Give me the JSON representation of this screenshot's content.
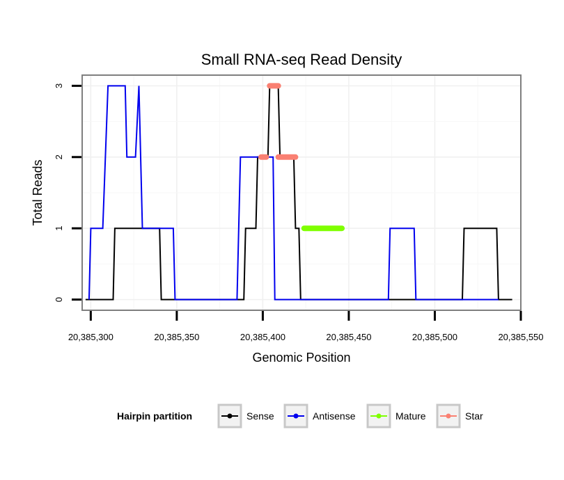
{
  "chart_data": {
    "type": "line",
    "title": "Small RNA-seq Read Density",
    "xlabel": "Genomic Position",
    "ylabel": "Total Reads",
    "xlim": [
      20385295,
      20385550
    ],
    "ylim": [
      -0.15,
      3.15
    ],
    "x_ticks": [
      20385300,
      20385350,
      20385400,
      20385450,
      20385500,
      20385550
    ],
    "x_tick_labels": [
      "20,385,300",
      "20,385,350",
      "20,385,400",
      "20,385,450",
      "20,385,500",
      "20,385,550"
    ],
    "y_ticks": [
      0,
      1,
      2,
      3
    ],
    "y_tick_labels": [
      "0",
      "1",
      "2",
      "3"
    ],
    "grid": true,
    "legend": {
      "title": "Hairpin partition",
      "position": "bottom",
      "entries": [
        {
          "name": "Sense",
          "color": "#000000"
        },
        {
          "name": "Antisense",
          "color": "#0000ee"
        },
        {
          "name": "Mature",
          "color": "#7fff00"
        },
        {
          "name": "Star",
          "color": "#fa8072"
        }
      ]
    },
    "series": [
      {
        "name": "Sense",
        "color": "#000000",
        "style": "line",
        "points": [
          [
            20385297,
            0
          ],
          [
            20385313,
            0
          ],
          [
            20385314,
            1
          ],
          [
            20385340,
            1
          ],
          [
            20385341,
            0
          ],
          [
            20385389,
            0
          ],
          [
            20385390,
            1
          ],
          [
            20385396,
            1
          ],
          [
            20385397,
            2
          ],
          [
            20385403,
            2
          ],
          [
            20385404,
            3
          ],
          [
            20385409,
            3
          ],
          [
            20385410,
            2
          ],
          [
            20385418,
            2
          ],
          [
            20385419,
            1
          ],
          [
            20385421,
            1
          ],
          [
            20385422,
            0
          ],
          [
            20385516,
            0
          ],
          [
            20385517,
            1
          ],
          [
            20385536,
            1
          ],
          [
            20385537,
            0
          ],
          [
            20385545,
            0
          ]
        ]
      },
      {
        "name": "Antisense",
        "color": "#0000ee",
        "style": "line",
        "points": [
          [
            20385299,
            0
          ],
          [
            20385300,
            1
          ],
          [
            20385307,
            1
          ],
          [
            20385310,
            3
          ],
          [
            20385320,
            3
          ],
          [
            20385321,
            2
          ],
          [
            20385326,
            2
          ],
          [
            20385328,
            3
          ],
          [
            20385330,
            1
          ],
          [
            20385348,
            1
          ],
          [
            20385349,
            0
          ],
          [
            20385385,
            0
          ],
          [
            20385387,
            2
          ],
          [
            20385406,
            2
          ],
          [
            20385407,
            0
          ],
          [
            20385473,
            0
          ],
          [
            20385474,
            1
          ],
          [
            20385488,
            1
          ],
          [
            20385489,
            0
          ],
          [
            20385537,
            0
          ]
        ]
      },
      {
        "name": "Mature",
        "color": "#7fff00",
        "style": "segment",
        "points": [
          [
            20385424,
            1
          ],
          [
            20385446,
            1
          ]
        ]
      },
      {
        "name": "Star",
        "color": "#fa8072",
        "style": "segment",
        "segments": [
          [
            [
              20385399,
              2
            ],
            [
              20385402,
              2
            ]
          ],
          [
            [
              20385404,
              3
            ],
            [
              20385409,
              3
            ]
          ],
          [
            [
              20385409,
              2
            ],
            [
              20385419,
              2
            ]
          ]
        ]
      }
    ]
  }
}
